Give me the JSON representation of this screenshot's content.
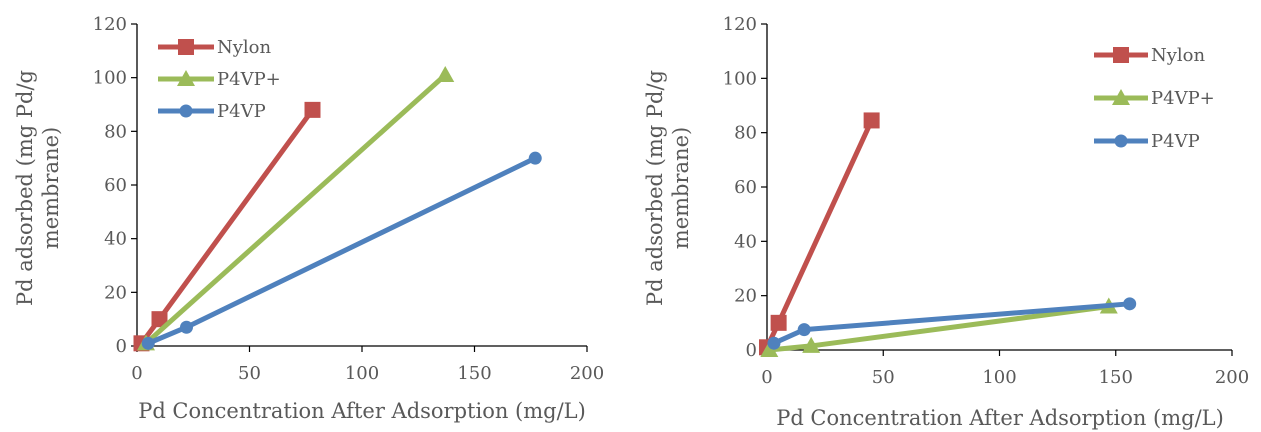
{
  "colors": {
    "Nylon": "#c0504d",
    "P4VP+": "#9bbb59",
    "P4VP": "#4f81bd",
    "axis": "#000000",
    "text": "#595959"
  },
  "chart_data": [
    {
      "type": "line",
      "xlabel": "Pd Concentration After Adsorption (mg/L)",
      "ylabel_lines": [
        "Pd adsorbed (mg Pd/g",
        "membrane)"
      ],
      "xlim": [
        0,
        200
      ],
      "ylim": [
        0,
        120
      ],
      "xticks": [
        "0",
        "50",
        "100",
        "150",
        "200"
      ],
      "yticks": [
        "0",
        "20",
        "40",
        "60",
        "80",
        "100",
        "120"
      ],
      "grid": false,
      "legend_position": "top-left",
      "series": [
        {
          "name": "Nylon",
          "marker": "square",
          "x": [
            2,
            10,
            78
          ],
          "y": [
            1,
            10,
            88
          ]
        },
        {
          "name": "P4VP+",
          "marker": "triangle",
          "x": [
            4,
            137
          ],
          "y": [
            1,
            101
          ]
        },
        {
          "name": "P4VP",
          "marker": "circle",
          "x": [
            5,
            22,
            177
          ],
          "y": [
            1,
            7,
            70
          ]
        }
      ]
    },
    {
      "type": "line",
      "xlabel": "Pd Concentration After Adsorption (mg/L)",
      "ylabel_lines": [
        "Pd adsorbed (mg Pd/g",
        "membrane)"
      ],
      "xlim": [
        0,
        200
      ],
      "ylim": [
        0,
        120
      ],
      "xticks": [
        "0",
        "50",
        "100",
        "150",
        "200"
      ],
      "yticks": [
        "0",
        "20",
        "40",
        "60",
        "80",
        "100",
        "120"
      ],
      "grid": false,
      "legend_position": "right",
      "series": [
        {
          "name": "Nylon",
          "marker": "square",
          "x": [
            0,
            5,
            45
          ],
          "y": [
            1,
            10,
            84.5
          ]
        },
        {
          "name": "P4VP+",
          "marker": "triangle",
          "x": [
            1,
            19,
            147
          ],
          "y": [
            0,
            1.5,
            16
          ]
        },
        {
          "name": "P4VP",
          "marker": "circle",
          "x": [
            3,
            16,
            156
          ],
          "y": [
            2.5,
            7.5,
            17
          ]
        }
      ]
    }
  ]
}
